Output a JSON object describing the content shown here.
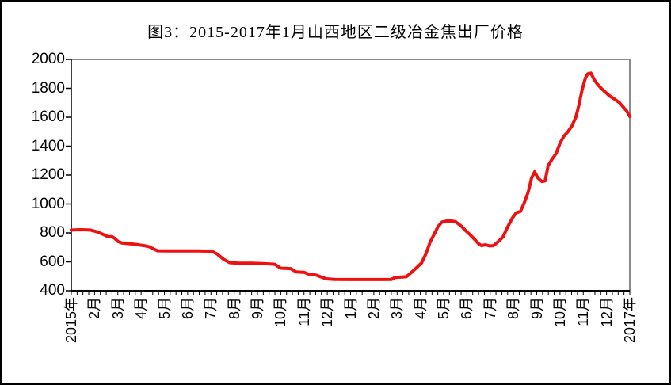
{
  "figure_title": "图3：2015-2017年1月山西地区二级冶金焦出厂价格",
  "chart_data": {
    "type": "line",
    "title": "图3：2015-2017年1月山西地区二级冶金焦出厂价格",
    "grid": false,
    "legend_position": "none",
    "x_axis": {
      "unit": "month (0 = 2015年1月, 24 = 2017年1月)",
      "labels": [
        "2015年",
        "2月",
        "3月",
        "4月",
        "5月",
        "6月",
        "7月",
        "8月",
        "9月",
        "10月",
        "11月",
        "12月",
        "1月",
        "2月",
        "3月",
        "4月",
        "5月",
        "6月",
        "7月",
        "8月",
        "9月",
        "10月",
        "11月",
        "12月",
        "2017年"
      ],
      "label_rotation_deg": -90,
      "minor_tick_count": 96,
      "range": [
        0,
        24
      ]
    },
    "y_axis": {
      "min": 400,
      "max": 2000,
      "tick_step": 200,
      "ticks": [
        400,
        600,
        800,
        1000,
        1200,
        1400,
        1600,
        1800,
        2000
      ]
    },
    "series": [
      {
        "name": "山西地区二级冶金焦出厂价格",
        "color": "#ee1111",
        "x": [
          0,
          0.41,
          0.82,
          1.09,
          1.36,
          1.6,
          1.74,
          1.87,
          2.01,
          2.18,
          2.45,
          2.79,
          3.13,
          3.37,
          3.54,
          3.71,
          4.15,
          4.83,
          5.51,
          6.03,
          6.26,
          6.54,
          6.81,
          7.22,
          7.73,
          8.24,
          8.75,
          8.99,
          9.43,
          9.67,
          10.01,
          10.21,
          10.52,
          10.72,
          10.96,
          11.3,
          11.98,
          12.66,
          13.34,
          13.75,
          13.92,
          14.2,
          14.4,
          14.57,
          14.81,
          15.05,
          15.25,
          15.42,
          15.59,
          15.76,
          15.93,
          16.14,
          16.34,
          16.51,
          16.75,
          16.95,
          17.12,
          17.33,
          17.5,
          17.63,
          17.8,
          17.97,
          18.14,
          18.35,
          18.55,
          18.76,
          18.96,
          19.13,
          19.3,
          19.47,
          19.64,
          19.78,
          19.91,
          20.05,
          20.22,
          20.36,
          20.49,
          20.66,
          20.83,
          21,
          21.17,
          21.34,
          21.51,
          21.68,
          21.82,
          21.95,
          22.09,
          22.19,
          22.33,
          22.47,
          22.6,
          22.77,
          22.94,
          23.15,
          23.35,
          23.56,
          23.73,
          23.86,
          24
        ],
        "values": [
          820,
          822,
          820,
          808,
          790,
          772,
          775,
          762,
          740,
          730,
          726,
          720,
          712,
          703,
          688,
          676,
          675,
          675,
          675,
          674,
          655,
          618,
          594,
          590,
          590,
          588,
          583,
          556,
          553,
          530,
          527,
          514,
          508,
          496,
          482,
          478,
          477,
          477,
          477,
          478,
          492,
          494,
          497,
          520,
          555,
          592,
          660,
          737,
          790,
          845,
          875,
          882,
          882,
          878,
          848,
          815,
          790,
          755,
          725,
          712,
          718,
          710,
          712,
          740,
          772,
          845,
          905,
          940,
          948,
          1010,
          1085,
          1180,
          1222,
          1180,
          1155,
          1160,
          1265,
          1310,
          1348,
          1420,
          1470,
          1500,
          1540,
          1600,
          1690,
          1790,
          1870,
          1900,
          1905,
          1860,
          1830,
          1800,
          1775,
          1745,
          1725,
          1700,
          1668,
          1645,
          1605
        ]
      }
    ],
    "colors": {
      "line": "#ee1111",
      "axis": "#000000",
      "plot_border_top_right": "#8a8a8a",
      "background": "#ffffff"
    }
  }
}
